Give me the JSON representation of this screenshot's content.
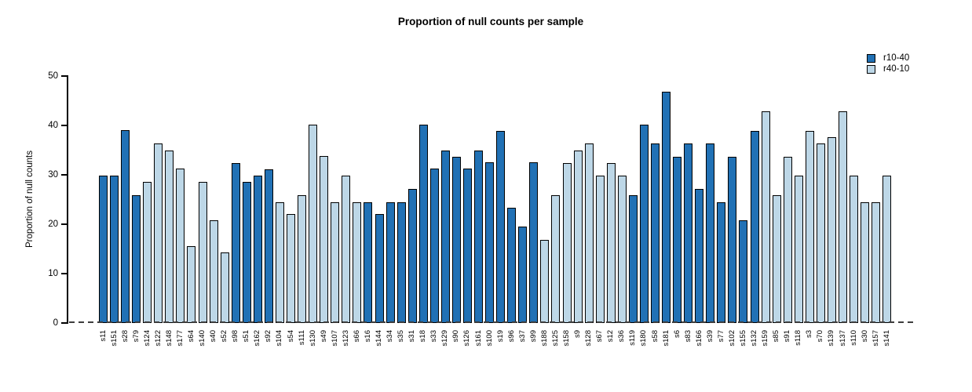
{
  "chart_data": {
    "type": "bar",
    "title": "Proportion of null counts per sample",
    "xlabel": "",
    "ylabel": "Proportion of null counts",
    "ylim": [
      0,
      50
    ],
    "yticks": [
      0,
      10,
      20,
      30,
      40,
      50
    ],
    "grid": false,
    "legend_position": "top-right",
    "zero_baseline_style": "dashed",
    "legend": [
      {
        "label": "r10-40",
        "color": "#2171b5"
      },
      {
        "label": "r40-10",
        "color": "#bdd7e7"
      }
    ],
    "bars": [
      {
        "label": "s11",
        "value": 29.8,
        "series": "r10-40"
      },
      {
        "label": "s151",
        "value": 29.8,
        "series": "r10-40"
      },
      {
        "label": "s28",
        "value": 39.0,
        "series": "r10-40"
      },
      {
        "label": "s79",
        "value": 25.9,
        "series": "r10-40"
      },
      {
        "label": "s124",
        "value": 28.5,
        "series": "r40-10"
      },
      {
        "label": "s122",
        "value": 36.3,
        "series": "r40-10"
      },
      {
        "label": "s148",
        "value": 35.0,
        "series": "r40-10"
      },
      {
        "label": "s177",
        "value": 31.2,
        "series": "r40-10"
      },
      {
        "label": "s64",
        "value": 15.5,
        "series": "r40-10"
      },
      {
        "label": "s140",
        "value": 28.5,
        "series": "r40-10"
      },
      {
        "label": "s40",
        "value": 20.8,
        "series": "r40-10"
      },
      {
        "label": "s52",
        "value": 14.3,
        "series": "r40-10"
      },
      {
        "label": "s98",
        "value": 32.4,
        "series": "r10-40"
      },
      {
        "label": "s51",
        "value": 28.5,
        "series": "r10-40"
      },
      {
        "label": "s162",
        "value": 29.8,
        "series": "r10-40"
      },
      {
        "label": "s92",
        "value": 31.1,
        "series": "r10-40"
      },
      {
        "label": "s104",
        "value": 24.5,
        "series": "r40-10"
      },
      {
        "label": "s54",
        "value": 22.0,
        "series": "r40-10"
      },
      {
        "label": "s111",
        "value": 25.9,
        "series": "r40-10"
      },
      {
        "label": "s130",
        "value": 40.2,
        "series": "r40-10"
      },
      {
        "label": "s49",
        "value": 33.8,
        "series": "r40-10"
      },
      {
        "label": "s107",
        "value": 24.5,
        "series": "r40-10"
      },
      {
        "label": "s123",
        "value": 29.8,
        "series": "r40-10"
      },
      {
        "label": "s66",
        "value": 24.5,
        "series": "r40-10"
      },
      {
        "label": "s16",
        "value": 24.5,
        "series": "r10-40"
      },
      {
        "label": "s144",
        "value": 22.0,
        "series": "r10-40"
      },
      {
        "label": "s34",
        "value": 24.5,
        "series": "r10-40"
      },
      {
        "label": "s35",
        "value": 24.5,
        "series": "r10-40"
      },
      {
        "label": "s31",
        "value": 27.2,
        "series": "r10-40"
      },
      {
        "label": "s18",
        "value": 40.2,
        "series": "r10-40"
      },
      {
        "label": "s33",
        "value": 31.2,
        "series": "r10-40"
      },
      {
        "label": "s129",
        "value": 35.0,
        "series": "r10-40"
      },
      {
        "label": "s90",
        "value": 33.7,
        "series": "r10-40"
      },
      {
        "label": "s126",
        "value": 31.2,
        "series": "r10-40"
      },
      {
        "label": "s161",
        "value": 35.0,
        "series": "r10-40"
      },
      {
        "label": "s100",
        "value": 32.5,
        "series": "r10-40"
      },
      {
        "label": "s19",
        "value": 38.9,
        "series": "r10-40"
      },
      {
        "label": "s96",
        "value": 23.3,
        "series": "r10-40"
      },
      {
        "label": "s37",
        "value": 19.5,
        "series": "r10-40"
      },
      {
        "label": "s99",
        "value": 32.5,
        "series": "r10-40"
      },
      {
        "label": "s188",
        "value": 16.8,
        "series": "r40-10"
      },
      {
        "label": "s125",
        "value": 25.9,
        "series": "r40-10"
      },
      {
        "label": "s158",
        "value": 32.4,
        "series": "r40-10"
      },
      {
        "label": "s9",
        "value": 34.9,
        "series": "r40-10"
      },
      {
        "label": "s128",
        "value": 36.3,
        "series": "r40-10"
      },
      {
        "label": "s67",
        "value": 29.8,
        "series": "r40-10"
      },
      {
        "label": "s12",
        "value": 32.4,
        "series": "r40-10"
      },
      {
        "label": "s36",
        "value": 29.8,
        "series": "r40-10"
      },
      {
        "label": "s119",
        "value": 25.9,
        "series": "r10-40"
      },
      {
        "label": "s180",
        "value": 40.1,
        "series": "r10-40"
      },
      {
        "label": "s58",
        "value": 36.3,
        "series": "r10-40"
      },
      {
        "label": "s181",
        "value": 46.8,
        "series": "r10-40"
      },
      {
        "label": "s6",
        "value": 33.7,
        "series": "r10-40"
      },
      {
        "label": "s83",
        "value": 36.3,
        "series": "r10-40"
      },
      {
        "label": "s166",
        "value": 27.2,
        "series": "r10-40"
      },
      {
        "label": "s39",
        "value": 36.3,
        "series": "r10-40"
      },
      {
        "label": "s77",
        "value": 24.5,
        "series": "r10-40"
      },
      {
        "label": "s102",
        "value": 33.7,
        "series": "r10-40"
      },
      {
        "label": "s155",
        "value": 20.8,
        "series": "r10-40"
      },
      {
        "label": "s132",
        "value": 38.9,
        "series": "r10-40"
      },
      {
        "label": "s159",
        "value": 42.9,
        "series": "r40-10"
      },
      {
        "label": "s85",
        "value": 25.9,
        "series": "r40-10"
      },
      {
        "label": "s91",
        "value": 33.7,
        "series": "r40-10"
      },
      {
        "label": "s118",
        "value": 29.8,
        "series": "r40-10"
      },
      {
        "label": "s3",
        "value": 38.9,
        "series": "r40-10"
      },
      {
        "label": "s70",
        "value": 36.3,
        "series": "r40-10"
      },
      {
        "label": "s139",
        "value": 37.6,
        "series": "r40-10"
      },
      {
        "label": "s137",
        "value": 42.9,
        "series": "r40-10"
      },
      {
        "label": "s110",
        "value": 29.8,
        "series": "r40-10"
      },
      {
        "label": "s30",
        "value": 24.5,
        "series": "r40-10"
      },
      {
        "label": "s157",
        "value": 24.5,
        "series": "r40-10"
      },
      {
        "label": "s141",
        "value": 29.8,
        "series": "r40-10"
      }
    ],
    "colors": {
      "bar_border": "#000000",
      "axis": "#000000",
      "baseline_dash": "#3d3d3d",
      "background": "#ffffff"
    }
  }
}
